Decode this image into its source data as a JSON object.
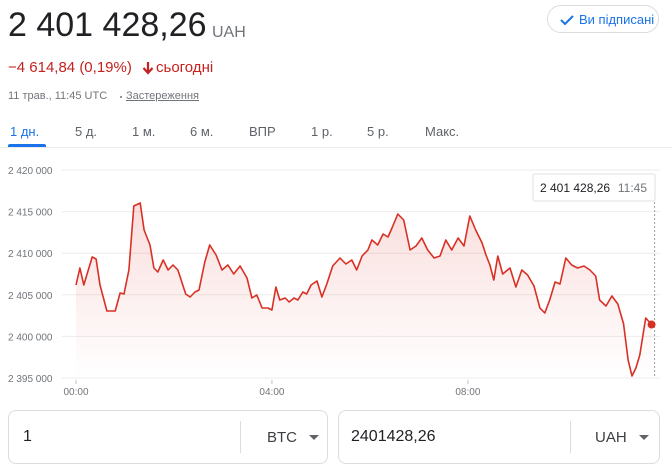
{
  "header": {
    "price": "2 401 428,26",
    "currency": "UAH",
    "change": "−4 614,84 (0,19%)",
    "period": "сьогодні",
    "timestamp": "11 трав., 11:45 UTC",
    "disclaimer": "Застереження",
    "follow": "Ви підписані"
  },
  "tabs": [
    "1 дн.",
    "5 д.",
    "1 м.",
    "6 м.",
    "ВПР",
    "1 р.",
    "5 р.",
    "Макс."
  ],
  "chart_data": {
    "type": "line",
    "x": [
      0,
      0.08,
      0.16,
      0.33,
      0.41,
      0.49,
      0.63,
      0.8,
      0.9,
      0.98,
      1.08,
      1.18,
      1.31,
      1.39,
      1.51,
      1.59,
      1.67,
      1.78,
      1.88,
      1.98,
      2.08,
      2.24,
      2.33,
      2.43,
      2.51,
      2.63,
      2.73,
      2.86,
      2.98,
      3.1,
      3.22,
      3.35,
      3.49,
      3.59,
      3.69,
      3.8,
      3.92,
      4,
      4.08,
      4.16,
      4.27,
      4.35,
      4.45,
      4.53,
      4.63,
      4.71,
      4.8,
      4.92,
      5.02,
      5.12,
      5.24,
      5.39,
      5.51,
      5.63,
      5.73,
      5.84,
      5.96,
      6.04,
      6.16,
      6.27,
      6.37,
      6.45,
      6.57,
      6.69,
      6.82,
      6.94,
      7.06,
      7.18,
      7.31,
      7.43,
      7.55,
      7.67,
      7.8,
      7.92,
      8.04,
      8.16,
      8.29,
      8.37,
      8.45,
      8.53,
      8.61,
      8.71,
      8.86,
      8.98,
      9.1,
      9.22,
      9.35,
      9.47,
      9.57,
      9.67,
      9.78,
      9.88,
      10,
      10.12,
      10.24,
      10.37,
      10.49,
      10.61,
      10.69,
      10.82,
      10.94,
      11.06,
      11.18,
      11.27,
      11.35,
      11.43,
      11.51,
      11.63,
      11.75
    ],
    "series": [
      {
        "color": "#d93025",
        "values": [
          2406178,
          2408221,
          2406178,
          2409543,
          2409303,
          2406178,
          2403053,
          2403053,
          2405217,
          2405096,
          2407981,
          2415673,
          2416034,
          2412789,
          2410986,
          2408221,
          2407741,
          2409183,
          2407981,
          2408582,
          2407981,
          2405096,
          2404736,
          2405337,
          2405577,
          2408943,
          2410986,
          2409784,
          2407981,
          2408582,
          2407500,
          2408462,
          2407019,
          2404616,
          2404976,
          2403414,
          2403414,
          2403173,
          2405938,
          2404375,
          2404616,
          2404135,
          2404616,
          2404375,
          2405337,
          2405096,
          2406178,
          2406659,
          2404736,
          2406298,
          2408462,
          2409423,
          2408702,
          2409183,
          2407981,
          2409664,
          2410385,
          2411587,
          2410986,
          2412308,
          2411947,
          2413029,
          2414712,
          2413990,
          2410385,
          2410866,
          2411827,
          2410385,
          2409423,
          2409664,
          2411587,
          2410385,
          2411827,
          2410866,
          2414471,
          2412789,
          2411226,
          2409784,
          2408582,
          2406779,
          2409664,
          2407500,
          2408221,
          2405938,
          2407981,
          2407380,
          2406058,
          2403414,
          2402813,
          2404375,
          2406539,
          2406298,
          2409423,
          2408582,
          2408221,
          2408462,
          2407981,
          2407260,
          2404375,
          2403654,
          2404856,
          2403895,
          2401491,
          2397164,
          2395241,
          2396202,
          2397765,
          2402212,
          2401428.26
        ]
      }
    ],
    "xlim": [
      0,
      11.82
    ],
    "ylim": [
      2395000,
      2420000
    ],
    "xticks": [
      {
        "value": 0,
        "label": "00:00"
      },
      {
        "value": 4,
        "label": "04:00"
      },
      {
        "value": 8,
        "label": "08:00"
      }
    ],
    "yticks": [
      {
        "value": 2420000,
        "label": "2 420 000"
      },
      {
        "value": 2415000,
        "label": "2 415 000"
      },
      {
        "value": 2410000,
        "label": "2 410 000"
      },
      {
        "value": 2405000,
        "label": "2 405 000"
      },
      {
        "value": 2400000,
        "label": "2 400 000"
      },
      {
        "value": 2395000,
        "label": "2 395 000"
      }
    ],
    "grid": true,
    "tooltip": {
      "value": "2 401 428,26",
      "time": "11:45"
    }
  },
  "converter": {
    "amount": "1",
    "from": "BTC",
    "result": "2401428,26",
    "to": "UAH"
  }
}
